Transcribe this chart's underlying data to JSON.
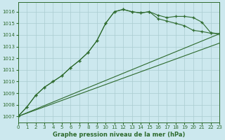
{
  "title": "Graphe pression niveau de la mer (hPa)",
  "bg_color": "#cce8ee",
  "grid_color": "#aaccd0",
  "line_color": "#2d6a2d",
  "xlim": [
    0,
    23
  ],
  "ylim": [
    1006.5,
    1016.8
  ],
  "yticks": [
    1007,
    1008,
    1009,
    1010,
    1011,
    1012,
    1013,
    1014,
    1015,
    1016
  ],
  "xticks": [
    0,
    1,
    2,
    3,
    4,
    5,
    6,
    7,
    8,
    9,
    10,
    11,
    12,
    13,
    14,
    15,
    16,
    17,
    18,
    19,
    20,
    21,
    22,
    23
  ],
  "series1_x": [
    0,
    1,
    2,
    3,
    4,
    5,
    6,
    7,
    8,
    9,
    10,
    11,
    12,
    13,
    14,
    15,
    16,
    17,
    18,
    19,
    20,
    21,
    22,
    23
  ],
  "series1_y": [
    1007.0,
    1007.8,
    1008.8,
    1009.5,
    1010.0,
    1010.5,
    1011.2,
    1011.8,
    1012.5,
    1013.5,
    1015.0,
    1016.0,
    1016.2,
    1016.0,
    1015.9,
    1016.0,
    1015.7,
    1015.5,
    1015.6,
    1015.6,
    1015.5,
    1015.1,
    1014.2,
    1014.1
  ],
  "series2_x": [
    0,
    1,
    2,
    3,
    4,
    5,
    6,
    7,
    8,
    9,
    10,
    11,
    12,
    13,
    14,
    15,
    16,
    17,
    18,
    19,
    20,
    21,
    22,
    23
  ],
  "series2_y": [
    1007.0,
    1007.8,
    1008.8,
    1009.5,
    1010.0,
    1010.5,
    1011.2,
    1011.8,
    1012.5,
    1013.5,
    1015.0,
    1016.0,
    1016.2,
    1016.0,
    1015.9,
    1016.0,
    1015.4,
    1015.2,
    1015.0,
    1014.8,
    1014.4,
    1014.3,
    1014.15,
    1014.1
  ],
  "line1_x": [
    0,
    23
  ],
  "line1_y": [
    1007.0,
    1014.1
  ],
  "line2_x": [
    0,
    23
  ],
  "line2_y": [
    1007.0,
    1013.3
  ]
}
